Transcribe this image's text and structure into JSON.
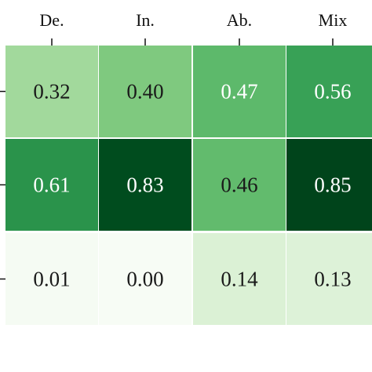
{
  "chart_data": {
    "type": "heatmap",
    "title": "",
    "xlabel": "",
    "ylabel": "",
    "columns": [
      "De.",
      "In.",
      "Ab.",
      "Mix"
    ],
    "rows": [
      "",
      "",
      ""
    ],
    "values": [
      [
        0.32,
        0.4,
        0.47,
        0.56
      ],
      [
        0.61,
        0.83,
        0.46,
        0.85
      ],
      [
        0.01,
        0.0,
        0.14,
        0.13
      ]
    ],
    "value_labels": [
      [
        "0.32",
        "0.40",
        "0.47",
        "0.56"
      ],
      [
        "0.61",
        "0.83",
        "0.46",
        "0.85"
      ],
      [
        "0.01",
        "0.00",
        "0.14",
        "0.13"
      ]
    ],
    "colormap": "Greens",
    "color_range": [
      0.0,
      0.85
    ],
    "x_axis_position": "top",
    "legend": "none",
    "grid": false
  }
}
